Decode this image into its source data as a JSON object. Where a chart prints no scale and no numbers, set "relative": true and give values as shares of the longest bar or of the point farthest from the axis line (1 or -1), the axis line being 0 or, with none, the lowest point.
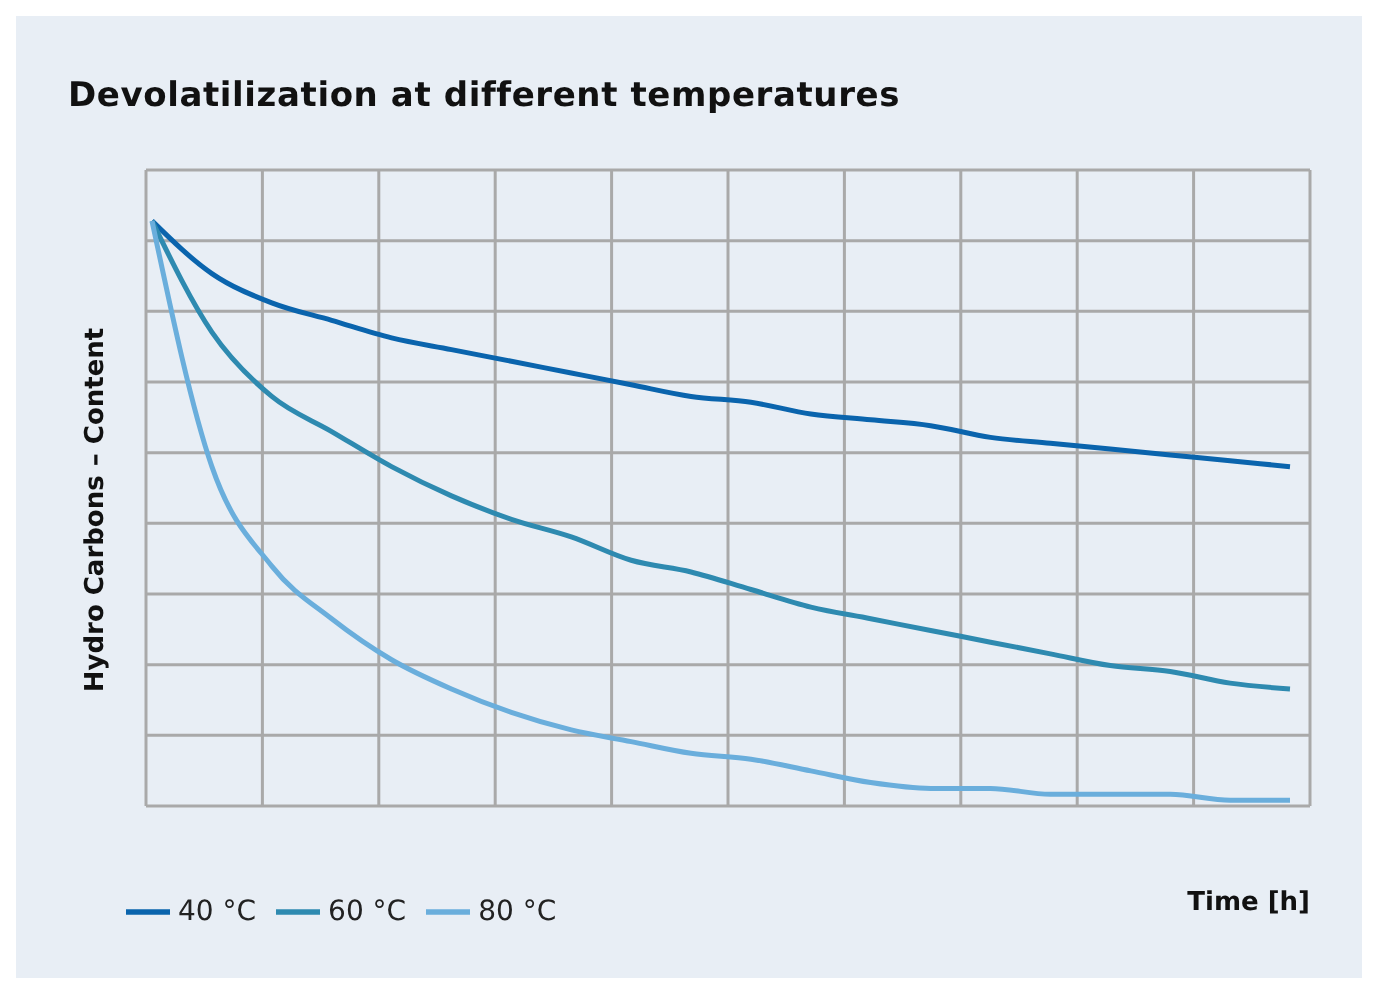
{
  "chart_data": {
    "type": "line",
    "title": "Devolatilization at different temperatures",
    "xlabel": "Time [h]",
    "ylabel": "Hydro Carbons – Content",
    "relative": true,
    "grid": true,
    "legend": "bottom left",
    "marker": "none",
    "line_style": "solid",
    "categories": [
      null,
      null,
      null,
      null,
      null,
      null,
      null,
      null,
      null,
      null,
      null,
      null,
      null,
      null,
      null,
      null,
      null,
      null,
      null,
      null
    ],
    "series": [
      {
        "name": "40 °C",
        "color": "#0a64ad",
        "values": [
          1,
          0.91,
          0.86,
          0.83,
          0.8,
          0.78,
          0.76,
          0.74,
          0.72,
          0.7,
          0.69,
          0.67,
          0.66,
          0.65,
          0.63,
          0.62,
          0.61,
          0.6,
          0.59,
          0.58
        ]
      },
      {
        "name": "60 °C",
        "color": "#2e8ab0",
        "values": [
          1,
          0.81,
          0.7,
          0.64,
          0.58,
          0.53,
          0.49,
          0.46,
          0.42,
          0.4,
          0.37,
          0.34,
          0.32,
          0.3,
          0.28,
          0.26,
          0.24,
          0.23,
          0.21,
          0.2
        ]
      },
      {
        "name": "80 °C",
        "color": "#6aaedc",
        "values": [
          1,
          0.58,
          0.41,
          0.32,
          0.25,
          0.2,
          0.16,
          0.13,
          0.11,
          0.09,
          0.08,
          0.06,
          0.04,
          0.03,
          0.03,
          0.02,
          0.02,
          0.02,
          0.01,
          0.01
        ]
      }
    ]
  }
}
